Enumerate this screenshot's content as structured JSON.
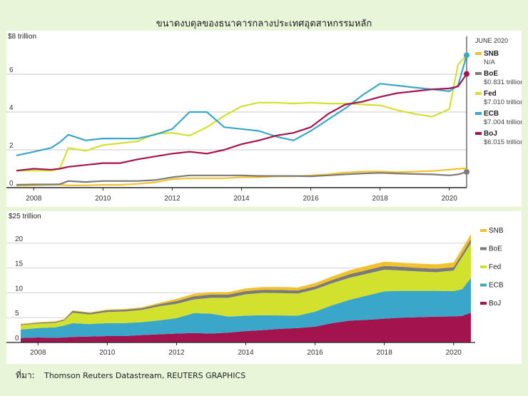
{
  "title": "ขนาดงบดุลของธนาคารกลางประเทศอุตสาหกรรมหลัก",
  "source": {
    "label": "ที่มา:",
    "text": "Thomson Reuters Datastream, REUTERS GRAPHICS"
  },
  "colors": {
    "SNB": "#f2c12e",
    "BoE": "#7a7a7a",
    "Fed": "#d2e02e",
    "ECB": "#3aa6c9",
    "BoJ": "#a3134e"
  },
  "chart_data": [
    {
      "type": "line",
      "ylabel": "$8 trillion",
      "ylim": [
        0,
        8
      ],
      "yticks": [
        0,
        2,
        4,
        6
      ],
      "xlim": [
        2007.5,
        2020.5
      ],
      "xticks": [
        "2008",
        "2010",
        "2012",
        "2014",
        "2016",
        "2018",
        "2020"
      ],
      "grid": true,
      "legend_title": "JUNE 2020",
      "legend": [
        {
          "key": "SNB",
          "value": "N/A"
        },
        {
          "key": "BoE",
          "value": "$0.831 trillion"
        },
        {
          "key": "Fed",
          "value": "$7.010 trillion"
        },
        {
          "key": "ECB",
          "value": "$7.004 trillion"
        },
        {
          "key": "BoJ",
          "value": "$6.015 trillion"
        }
      ],
      "x": [
        2007.5,
        2008.0,
        2008.5,
        2008.75,
        2009.0,
        2009.5,
        2010.0,
        2010.5,
        2011.0,
        2011.5,
        2012.0,
        2012.5,
        2013.0,
        2013.5,
        2014.0,
        2014.5,
        2015.0,
        2015.5,
        2016.0,
        2016.5,
        2017.0,
        2017.5,
        2018.0,
        2018.5,
        2019.0,
        2019.5,
        2020.0,
        2020.25,
        2020.5
      ],
      "series": [
        {
          "name": "SNB",
          "values": [
            0.1,
            0.12,
            0.15,
            0.15,
            0.12,
            0.12,
            0.15,
            0.15,
            0.2,
            0.28,
            0.45,
            0.5,
            0.5,
            0.5,
            0.55,
            0.55,
            0.6,
            0.6,
            0.65,
            0.7,
            0.8,
            0.85,
            0.85,
            0.82,
            0.85,
            0.88,
            0.95,
            1.0,
            1.02
          ]
        },
        {
          "name": "BoE",
          "values": [
            0.15,
            0.17,
            0.17,
            0.18,
            0.35,
            0.3,
            0.35,
            0.35,
            0.35,
            0.4,
            0.55,
            0.65,
            0.65,
            0.65,
            0.65,
            0.62,
            0.62,
            0.62,
            0.6,
            0.65,
            0.7,
            0.75,
            0.78,
            0.75,
            0.72,
            0.7,
            0.65,
            0.7,
            0.831
          ]
        },
        {
          "name": "Fed",
          "values": [
            0.9,
            0.9,
            0.9,
            1.0,
            2.1,
            1.95,
            2.25,
            2.35,
            2.45,
            2.85,
            2.9,
            2.75,
            3.2,
            3.8,
            4.3,
            4.5,
            4.5,
            4.45,
            4.5,
            4.45,
            4.45,
            4.4,
            4.35,
            4.1,
            3.9,
            3.75,
            4.15,
            6.5,
            7.01
          ]
        },
        {
          "name": "ECB",
          "values": [
            1.7,
            1.9,
            2.1,
            2.4,
            2.8,
            2.5,
            2.6,
            2.6,
            2.6,
            2.8,
            3.1,
            4.0,
            4.0,
            3.2,
            3.1,
            3.0,
            2.7,
            2.5,
            3.0,
            3.6,
            4.2,
            4.9,
            5.5,
            5.4,
            5.3,
            5.2,
            5.1,
            5.4,
            7.004
          ]
        },
        {
          "name": "BoJ",
          "values": [
            0.9,
            1.0,
            0.95,
            1.0,
            1.1,
            1.2,
            1.3,
            1.3,
            1.5,
            1.65,
            1.8,
            1.9,
            1.8,
            2.0,
            2.3,
            2.5,
            2.75,
            2.9,
            3.2,
            3.9,
            4.4,
            4.55,
            4.8,
            5.0,
            5.1,
            5.2,
            5.25,
            5.35,
            6.015
          ]
        }
      ]
    },
    {
      "type": "area",
      "ylabel": "$25 trillion",
      "ylim": [
        0,
        25
      ],
      "yticks": [
        0,
        5,
        10,
        15,
        20
      ],
      "xlim": [
        2007.5,
        2020.5
      ],
      "xticks": [
        "2008",
        "2010",
        "2012",
        "2014",
        "2016",
        "2018",
        "2020"
      ],
      "stacked": true,
      "legend_order": [
        "SNB",
        "BoE",
        "Fed",
        "ECB",
        "BoJ"
      ],
      "x": [
        2007.5,
        2008.0,
        2008.5,
        2008.75,
        2009.0,
        2009.5,
        2010.0,
        2010.5,
        2011.0,
        2011.5,
        2012.0,
        2012.5,
        2013.0,
        2013.5,
        2014.0,
        2014.5,
        2015.0,
        2015.5,
        2016.0,
        2016.5,
        2017.0,
        2017.5,
        2018.0,
        2018.5,
        2019.0,
        2019.5,
        2020.0,
        2020.25,
        2020.5
      ],
      "series": [
        {
          "name": "BoJ",
          "values": [
            0.9,
            1.0,
            0.95,
            1.0,
            1.1,
            1.2,
            1.3,
            1.3,
            1.5,
            1.65,
            1.8,
            1.9,
            1.8,
            2.0,
            2.3,
            2.5,
            2.75,
            2.9,
            3.2,
            3.9,
            4.4,
            4.55,
            4.8,
            5.0,
            5.1,
            5.2,
            5.25,
            5.35,
            6.0
          ]
        },
        {
          "name": "ECB",
          "values": [
            1.7,
            1.9,
            2.1,
            2.4,
            2.8,
            2.5,
            2.6,
            2.6,
            2.6,
            2.8,
            3.1,
            4.0,
            4.0,
            3.2,
            3.1,
            3.0,
            2.7,
            2.5,
            3.0,
            3.6,
            4.2,
            4.9,
            5.5,
            5.4,
            5.3,
            5.2,
            5.1,
            5.4,
            7.0
          ]
        },
        {
          "name": "Fed",
          "values": [
            0.9,
            0.9,
            0.9,
            1.0,
            2.1,
            1.95,
            2.25,
            2.35,
            2.45,
            2.85,
            2.9,
            2.75,
            3.2,
            3.8,
            4.3,
            4.5,
            4.5,
            4.45,
            4.5,
            4.45,
            4.45,
            4.4,
            4.35,
            4.1,
            3.9,
            3.75,
            4.15,
            6.5,
            7.0
          ]
        },
        {
          "name": "BoE",
          "values": [
            0.15,
            0.17,
            0.17,
            0.18,
            0.35,
            0.3,
            0.35,
            0.35,
            0.35,
            0.4,
            0.55,
            0.65,
            0.65,
            0.65,
            0.65,
            0.62,
            0.62,
            0.62,
            0.6,
            0.65,
            0.7,
            0.75,
            0.78,
            0.75,
            0.72,
            0.7,
            0.65,
            0.7,
            0.83
          ]
        },
        {
          "name": "SNB",
          "values": [
            0.1,
            0.12,
            0.15,
            0.15,
            0.12,
            0.12,
            0.15,
            0.15,
            0.2,
            0.28,
            0.45,
            0.5,
            0.5,
            0.5,
            0.55,
            0.55,
            0.6,
            0.6,
            0.65,
            0.7,
            0.8,
            0.85,
            0.85,
            0.82,
            0.85,
            0.88,
            0.95,
            1.0,
            1.0
          ]
        }
      ]
    }
  ]
}
